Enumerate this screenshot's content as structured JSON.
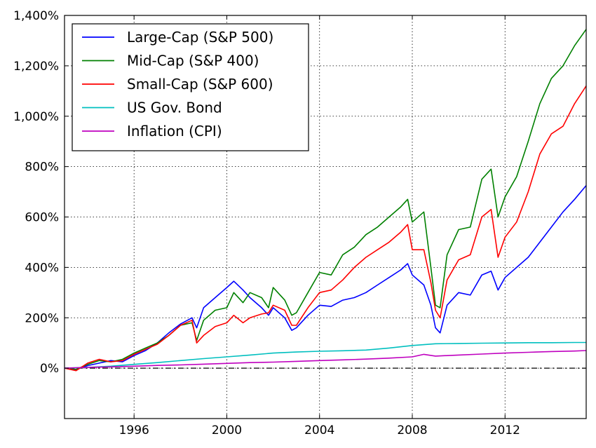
{
  "chart_data": {
    "type": "line",
    "title": "",
    "xlabel": "",
    "ylabel": "",
    "xlim": [
      1993.0,
      2015.5
    ],
    "ylim": [
      -200,
      1400
    ],
    "x_ticks": [
      1996,
      2000,
      2004,
      2008,
      2012
    ],
    "y_ticks": [
      {
        "value": 1400,
        "label": "1,400%"
      },
      {
        "value": 1200,
        "label": "1,200%"
      },
      {
        "value": 1000,
        "label": "1,000%"
      },
      {
        "value": 800,
        "label": "800%"
      },
      {
        "value": 600,
        "label": "600%"
      },
      {
        "value": 400,
        "label": "400%"
      },
      {
        "value": 200,
        "label": "200%"
      },
      {
        "value": 0,
        "label": "0%"
      }
    ],
    "grid": true,
    "legend_position": "top-left",
    "reference_line": {
      "y": 0,
      "style": "dash-dot",
      "color": "#000000"
    },
    "series": [
      {
        "name": "Large-Cap (S&P 500)",
        "color": "#0000ff",
        "x": [
          1993.0,
          1993.5,
          1994.0,
          1994.5,
          1995.0,
          1995.5,
          1996.0,
          1996.5,
          1997.0,
          1997.5,
          1998.0,
          1998.5,
          1998.7,
          1999.0,
          1999.5,
          2000.0,
          2000.3,
          2000.7,
          2001.0,
          2001.5,
          2001.8,
          2002.0,
          2002.5,
          2002.8,
          2003.0,
          2003.5,
          2004.0,
          2004.5,
          2005.0,
          2005.5,
          2006.0,
          2006.5,
          2007.0,
          2007.5,
          2007.8,
          2008.0,
          2008.5,
          2008.8,
          2009.0,
          2009.2,
          2009.5,
          2010.0,
          2010.5,
          2011.0,
          2011.4,
          2011.7,
          2012.0,
          2012.5,
          2013.0,
          2013.5,
          2014.0,
          2014.5,
          2015.0,
          2015.5
        ],
        "values": [
          0,
          -5,
          10,
          20,
          30,
          25,
          50,
          70,
          100,
          140,
          175,
          200,
          160,
          240,
          280,
          320,
          345,
          310,
          280,
          240,
          210,
          240,
          200,
          150,
          160,
          210,
          250,
          245,
          270,
          280,
          300,
          330,
          360,
          390,
          415,
          370,
          330,
          250,
          160,
          140,
          250,
          300,
          290,
          370,
          385,
          310,
          360,
          400,
          440,
          500,
          560,
          620,
          670,
          725
        ]
      },
      {
        "name": "Mid-Cap (S&P 400)",
        "color": "#008000",
        "x": [
          1993.0,
          1993.5,
          1994.0,
          1994.5,
          1995.0,
          1995.5,
          1996.0,
          1996.5,
          1997.0,
          1997.5,
          1998.0,
          1998.5,
          1998.7,
          1999.0,
          1999.5,
          2000.0,
          2000.3,
          2000.7,
          2001.0,
          2001.5,
          2001.8,
          2002.0,
          2002.5,
          2002.8,
          2003.0,
          2003.5,
          2004.0,
          2004.5,
          2005.0,
          2005.5,
          2006.0,
          2006.5,
          2007.0,
          2007.5,
          2007.8,
          2008.0,
          2008.5,
          2008.8,
          2009.0,
          2009.2,
          2009.5,
          2010.0,
          2010.5,
          2011.0,
          2011.4,
          2011.7,
          2012.0,
          2012.5,
          2013.0,
          2013.5,
          2014.0,
          2014.5,
          2015.0,
          2015.5
        ],
        "values": [
          0,
          -5,
          15,
          30,
          25,
          35,
          60,
          80,
          100,
          130,
          170,
          180,
          110,
          190,
          230,
          240,
          300,
          260,
          300,
          280,
          240,
          320,
          270,
          210,
          220,
          300,
          380,
          370,
          450,
          480,
          530,
          560,
          600,
          640,
          670,
          580,
          620,
          400,
          250,
          240,
          450,
          550,
          560,
          750,
          790,
          600,
          680,
          760,
          900,
          1050,
          1150,
          1200,
          1280,
          1345
        ]
      },
      {
        "name": "Small-Cap (S&P 600)",
        "color": "#ff0000",
        "x": [
          1993.0,
          1993.5,
          1994.0,
          1994.5,
          1995.0,
          1995.5,
          1996.0,
          1996.5,
          1997.0,
          1997.5,
          1998.0,
          1998.5,
          1998.7,
          1999.0,
          1999.5,
          2000.0,
          2000.3,
          2000.7,
          2001.0,
          2001.5,
          2001.8,
          2002.0,
          2002.5,
          2002.8,
          2003.0,
          2003.5,
          2004.0,
          2004.5,
          2005.0,
          2005.5,
          2006.0,
          2006.5,
          2007.0,
          2007.5,
          2007.8,
          2008.0,
          2008.5,
          2008.8,
          2009.0,
          2009.2,
          2009.5,
          2010.0,
          2010.5,
          2011.0,
          2011.4,
          2011.7,
          2012.0,
          2012.5,
          2013.0,
          2013.5,
          2014.0,
          2014.5,
          2015.0,
          2015.5
        ],
        "values": [
          0,
          -10,
          20,
          35,
          25,
          30,
          55,
          75,
          95,
          130,
          170,
          190,
          100,
          130,
          165,
          180,
          210,
          180,
          200,
          215,
          220,
          250,
          230,
          170,
          170,
          240,
          300,
          310,
          350,
          400,
          440,
          470,
          500,
          540,
          570,
          470,
          470,
          340,
          230,
          200,
          350,
          430,
          450,
          600,
          630,
          440,
          520,
          580,
          700,
          850,
          930,
          960,
          1050,
          1120
        ]
      },
      {
        "name": "US Gov. Bond",
        "color": "#00bfbf",
        "x": [
          1993.0,
          1994.0,
          1995.0,
          1996.0,
          1997.0,
          1998.0,
          1999.0,
          2000.0,
          2001.0,
          2002.0,
          2003.0,
          2004.0,
          2005.0,
          2006.0,
          2007.0,
          2008.0,
          2009.0,
          2010.0,
          2011.0,
          2012.0,
          2013.0,
          2014.0,
          2015.0,
          2015.5
        ],
        "values": [
          0,
          3,
          8,
          15,
          22,
          30,
          38,
          45,
          52,
          60,
          64,
          67,
          69,
          72,
          80,
          90,
          97,
          98,
          99,
          100,
          101,
          101,
          102,
          102
        ]
      },
      {
        "name": "Inflation (CPI)",
        "color": "#bf00bf",
        "x": [
          1993.0,
          1994.0,
          1995.0,
          1996.0,
          1997.0,
          1998.0,
          1999.0,
          2000.0,
          2001.0,
          2002.0,
          2003.0,
          2004.0,
          2005.0,
          2006.0,
          2007.0,
          2008.0,
          2008.5,
          2009.0,
          2010.0,
          2011.0,
          2012.0,
          2013.0,
          2014.0,
          2015.0,
          2015.5
        ],
        "values": [
          0,
          3,
          5,
          8,
          11,
          13,
          16,
          19,
          22,
          24,
          27,
          30,
          33,
          36,
          40,
          45,
          55,
          48,
          52,
          56,
          60,
          63,
          66,
          68,
          70
        ]
      }
    ]
  }
}
